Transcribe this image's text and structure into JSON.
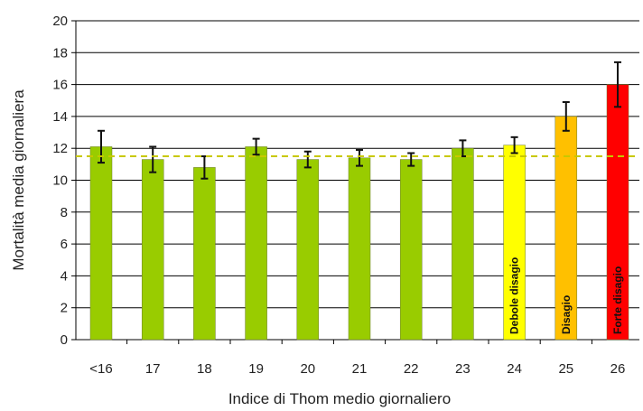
{
  "chart_data": {
    "type": "bar",
    "categories": [
      "<16",
      "17",
      "18",
      "19",
      "20",
      "21",
      "22",
      "23",
      "24",
      "25",
      "26"
    ],
    "values": [
      12.1,
      11.3,
      10.8,
      12.1,
      11.3,
      11.4,
      11.3,
      12.0,
      12.2,
      14.0,
      16.0
    ],
    "error": [
      1.0,
      0.8,
      0.7,
      0.5,
      0.5,
      0.5,
      0.4,
      0.5,
      0.5,
      0.9,
      1.4
    ],
    "bar_colors": [
      "#99cc00",
      "#99cc00",
      "#99cc00",
      "#99cc00",
      "#99cc00",
      "#99cc00",
      "#99cc00",
      "#99cc00",
      "#ffff00",
      "#ffc000",
      "#ff0000"
    ],
    "bar_labels": [
      "",
      "",
      "",
      "",
      "",
      "",
      "",
      "",
      "Debole disagio",
      "Disagio",
      "Forte disagio"
    ],
    "reference_line": {
      "value": 11.5,
      "style": "dashed",
      "color": "#c8c800"
    },
    "xlabel": "Indice di Thom medio giornaliero",
    "ylabel": "Mortalità media giornaliera",
    "ylim": [
      0,
      20
    ],
    "yticks": [
      0,
      2,
      4,
      6,
      8,
      10,
      12,
      14,
      16,
      18,
      20
    ],
    "grid": true
  }
}
